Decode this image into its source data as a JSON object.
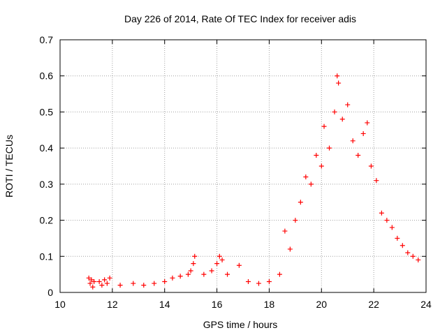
{
  "chart_data": {
    "type": "scatter",
    "title": "Day 226 of 2014, Rate Of TEC Index for receiver adis",
    "xlabel": "GPS time / hours",
    "ylabel": "ROTI / TECUs",
    "xlim": [
      10,
      24
    ],
    "ylim": [
      0,
      0.7
    ],
    "grid": true,
    "x_ticks": [
      10,
      12,
      14,
      16,
      18,
      20,
      22,
      24
    ],
    "x_tick_labels": [
      "10",
      "12",
      "14",
      "16",
      "18",
      "20",
      "22",
      "24"
    ],
    "y_ticks": [
      0,
      0.1,
      0.2,
      0.3,
      0.4,
      0.5,
      0.6,
      0.7
    ],
    "y_tick_labels": [
      "0",
      "0.1",
      "0.2",
      "0.3",
      "0.4",
      "0.5",
      "0.6",
      "0.7"
    ],
    "marker": "+",
    "color": "#ff0000",
    "series": [
      {
        "name": "ROTI",
        "points": [
          [
            11.1,
            0.04
          ],
          [
            11.15,
            0.025
          ],
          [
            11.2,
            0.035
          ],
          [
            11.25,
            0.015
          ],
          [
            11.3,
            0.03
          ],
          [
            11.5,
            0.03
          ],
          [
            11.6,
            0.02
          ],
          [
            11.7,
            0.035
          ],
          [
            11.8,
            0.025
          ],
          [
            11.9,
            0.04
          ],
          [
            12.3,
            0.02
          ],
          [
            12.8,
            0.025
          ],
          [
            13.2,
            0.02
          ],
          [
            13.6,
            0.025
          ],
          [
            14.0,
            0.03
          ],
          [
            14.3,
            0.04
          ],
          [
            14.6,
            0.045
          ],
          [
            14.9,
            0.05
          ],
          [
            15.0,
            0.06
          ],
          [
            15.1,
            0.08
          ],
          [
            15.15,
            0.1
          ],
          [
            15.5,
            0.05
          ],
          [
            15.8,
            0.06
          ],
          [
            16.0,
            0.08
          ],
          [
            16.1,
            0.1
          ],
          [
            16.2,
            0.09
          ],
          [
            16.4,
            0.05
          ],
          [
            16.85,
            0.075
          ],
          [
            17.2,
            0.03
          ],
          [
            17.6,
            0.025
          ],
          [
            18.0,
            0.03
          ],
          [
            18.4,
            0.05
          ],
          [
            18.6,
            0.17
          ],
          [
            18.8,
            0.12
          ],
          [
            19.0,
            0.2
          ],
          [
            19.2,
            0.25
          ],
          [
            19.4,
            0.32
          ],
          [
            19.6,
            0.3
          ],
          [
            19.8,
            0.38
          ],
          [
            20.0,
            0.35
          ],
          [
            20.1,
            0.46
          ],
          [
            20.3,
            0.4
          ],
          [
            20.5,
            0.5
          ],
          [
            20.6,
            0.6
          ],
          [
            20.65,
            0.58
          ],
          [
            20.8,
            0.48
          ],
          [
            21.0,
            0.52
          ],
          [
            21.2,
            0.42
          ],
          [
            21.4,
            0.38
          ],
          [
            21.6,
            0.44
          ],
          [
            21.75,
            0.47
          ],
          [
            21.9,
            0.35
          ],
          [
            22.1,
            0.31
          ],
          [
            22.3,
            0.22
          ],
          [
            22.5,
            0.2
          ],
          [
            22.7,
            0.18
          ],
          [
            22.9,
            0.15
          ],
          [
            23.1,
            0.13
          ],
          [
            23.3,
            0.11
          ],
          [
            23.5,
            0.1
          ],
          [
            23.7,
            0.09
          ]
        ]
      }
    ]
  }
}
